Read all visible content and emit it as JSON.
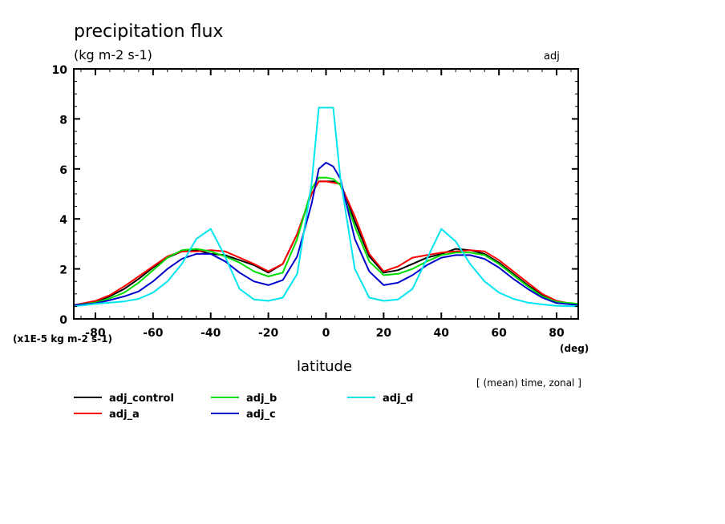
{
  "chart_data": {
    "type": "line",
    "title": "precipitation flux",
    "units": "(kg m-2 s-1)",
    "experiment_label": "adj",
    "xlabel": "latitude",
    "xunits": "(deg)",
    "yscale_label": "(x1E-5 kg m-2 s-1)",
    "averaging_note": "[ (mean) time, zonal ]",
    "xlim": [
      -87.5,
      87.5
    ],
    "ylim": [
      0,
      10
    ],
    "xticks": [
      -80,
      -60,
      -40,
      -20,
      0,
      20,
      40,
      60,
      80
    ],
    "xtick_labels": [
      "-80",
      "-60",
      "-40",
      "-20",
      "0",
      "20",
      "40",
      "60",
      "80"
    ],
    "yticks": [
      0,
      2,
      4,
      6,
      8,
      10
    ],
    "ytick_labels": [
      "0",
      "2",
      "4",
      "6",
      "8",
      "10"
    ],
    "grid": false,
    "legend_position": "bottom",
    "x": [
      -87.5,
      -80,
      -75,
      -70,
      -65,
      -60,
      -55,
      -50,
      -45,
      -40,
      -35,
      -30,
      -25,
      -20,
      -15,
      -10,
      -5,
      -2.5,
      0,
      2.5,
      5,
      10,
      15,
      20,
      25,
      30,
      35,
      40,
      45,
      50,
      55,
      60,
      65,
      70,
      75,
      80,
      87.5
    ],
    "series": [
      {
        "name": "adj_control",
        "color": "#000000",
        "values": [
          0.55,
          0.7,
          0.9,
          1.2,
          1.6,
          2.05,
          2.45,
          2.7,
          2.75,
          2.6,
          2.55,
          2.35,
          2.15,
          1.85,
          2.2,
          3.4,
          5.0,
          5.5,
          5.5,
          5.5,
          5.4,
          3.9,
          2.5,
          1.85,
          1.95,
          2.2,
          2.45,
          2.6,
          2.8,
          2.75,
          2.6,
          2.25,
          1.8,
          1.35,
          0.95,
          0.7,
          0.55
        ]
      },
      {
        "name": "adj_a",
        "color": "#ff0000",
        "values": [
          0.55,
          0.72,
          0.95,
          1.3,
          1.7,
          2.1,
          2.5,
          2.7,
          2.7,
          2.75,
          2.7,
          2.45,
          2.2,
          1.9,
          2.2,
          3.4,
          5.0,
          5.5,
          5.5,
          5.45,
          5.4,
          4.1,
          2.6,
          1.9,
          2.1,
          2.45,
          2.55,
          2.65,
          2.7,
          2.75,
          2.7,
          2.35,
          1.9,
          1.45,
          1.0,
          0.72,
          0.55
        ]
      },
      {
        "name": "adj_b",
        "color": "#00dd00",
        "values": [
          0.55,
          0.65,
          0.82,
          1.05,
          1.45,
          1.95,
          2.45,
          2.75,
          2.8,
          2.7,
          2.5,
          2.25,
          1.9,
          1.7,
          1.85,
          3.2,
          5.2,
          5.65,
          5.65,
          5.6,
          5.35,
          3.7,
          2.3,
          1.75,
          1.8,
          2.0,
          2.3,
          2.55,
          2.65,
          2.65,
          2.55,
          2.2,
          1.75,
          1.3,
          0.9,
          0.68,
          0.6
        ]
      },
      {
        "name": "adj_c",
        "color": "#0000cc",
        "values": [
          0.55,
          0.62,
          0.75,
          0.9,
          1.1,
          1.5,
          2.0,
          2.4,
          2.6,
          2.6,
          2.3,
          1.85,
          1.5,
          1.35,
          1.55,
          2.5,
          4.6,
          6.0,
          6.25,
          6.1,
          5.6,
          3.2,
          1.9,
          1.35,
          1.45,
          1.75,
          2.15,
          2.45,
          2.55,
          2.55,
          2.4,
          2.05,
          1.6,
          1.2,
          0.85,
          0.63,
          0.55
        ]
      },
      {
        "name": "adj_d",
        "color": "#00e5ee",
        "values": [
          0.5,
          0.6,
          0.65,
          0.7,
          0.8,
          1.05,
          1.5,
          2.2,
          3.2,
          3.6,
          2.5,
          1.2,
          0.78,
          0.72,
          0.85,
          1.8,
          5.4,
          8.45,
          8.45,
          8.45,
          5.6,
          2.0,
          0.85,
          0.72,
          0.78,
          1.2,
          2.4,
          3.6,
          3.1,
          2.2,
          1.5,
          1.05,
          0.8,
          0.65,
          0.58,
          0.52,
          0.5
        ]
      }
    ]
  }
}
